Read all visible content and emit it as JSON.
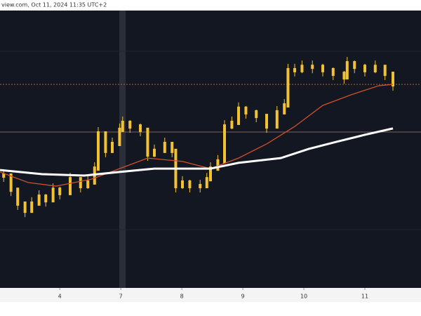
{
  "chart_data": {
    "type": "line",
    "title": "view.com, Oct 11, 2024 11:35 UTC+2",
    "xlim": [
      0.02,
      6.92
    ],
    "ylim": [
      0,
      100
    ],
    "xticks": [
      {
        "value": 1,
        "label": "4"
      },
      {
        "value": 2,
        "label": "7"
      },
      {
        "value": 3,
        "label": "8"
      },
      {
        "value": 4,
        "label": "9"
      },
      {
        "value": 5,
        "label": "10"
      },
      {
        "value": 6,
        "label": "11"
      }
    ],
    "hlines": [
      {
        "value": 73.4,
        "color": "#c8793a"
      },
      {
        "value": 56.2,
        "color": "#a07070"
      }
    ],
    "series": [
      {
        "color": "#f2c230",
        "style": "bars",
        "x": [
          0.08,
          0.2,
          0.31,
          0.43,
          0.54,
          0.66,
          0.77,
          0.89,
          1.0,
          1.17,
          1.34,
          1.46,
          1.57,
          1.63,
          1.75,
          1.86,
          1.98,
          2.03,
          2.15,
          2.32,
          2.44,
          2.55,
          2.72,
          2.84,
          2.9,
          3.01,
          3.13,
          3.3,
          3.41,
          3.47,
          3.59,
          3.7,
          3.82,
          3.93,
          4.05,
          4.22,
          4.39,
          4.56,
          4.68,
          4.74,
          4.85,
          4.97,
          5.14,
          5.31,
          5.48,
          5.66,
          5.71,
          5.83,
          6.0,
          6.17,
          6.33,
          6.46
        ],
        "values": [
          40.5,
          35.4,
          30.4,
          27.8,
          30.4,
          32.9,
          31.6,
          35.4,
          34.2,
          39.2,
          36.7,
          38.0,
          43.0,
          55.7,
          49.4,
          51.9,
          57.0,
          59.5,
          58.2,
          57.0,
          48.1,
          49.4,
          51.9,
          49.4,
          36.7,
          38.0,
          36.7,
          36.7,
          39.2,
          43.0,
          45.6,
          58.2,
          59.5,
          64.6,
          63.3,
          62.0,
          58.2,
          63.3,
          65.8,
          78.5,
          78.5,
          79.7,
          79.7,
          78.5,
          77.2,
          75.9,
          81.0,
          79.7,
          78.5,
          79.7,
          77.2,
          73.4
        ]
      },
      {
        "color": "#d0502a",
        "style": "line",
        "x": [
          0.02,
          0.48,
          0.94,
          1.52,
          1.98,
          2.44,
          3.01,
          3.47,
          3.93,
          4.39,
          4.85,
          5.31,
          5.77,
          6.23,
          6.46
        ],
        "values": [
          41.8,
          38.0,
          36.7,
          39.2,
          43.0,
          46.8,
          45.6,
          43.0,
          46.8,
          51.9,
          58.2,
          65.8,
          69.6,
          72.9,
          73.4
        ]
      },
      {
        "color": "#ffffff",
        "style": "line",
        "x": [
          0.02,
          0.71,
          1.4,
          1.98,
          2.55,
          3.01,
          3.47,
          3.93,
          4.62,
          5.08,
          5.54,
          6.0,
          6.46
        ],
        "values": [
          42.5,
          41.0,
          40.5,
          41.8,
          43.0,
          43.0,
          43.0,
          45.1,
          46.8,
          50.1,
          52.7,
          55.2,
          57.5
        ]
      }
    ]
  }
}
